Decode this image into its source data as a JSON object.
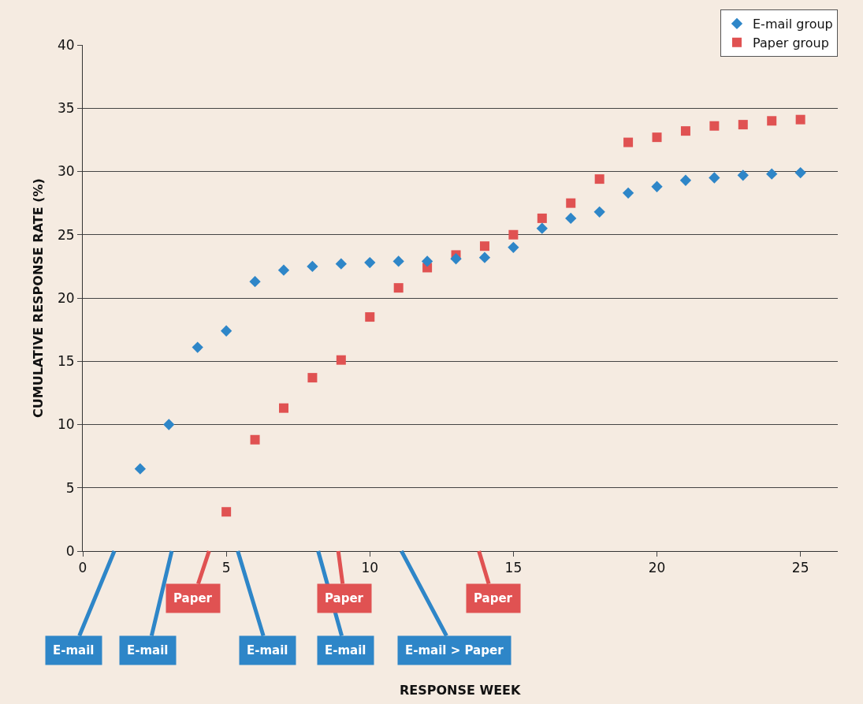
{
  "chart_data": {
    "type": "scatter",
    "ylabel": "CUMULATIVE RESPONSE RATE (%)",
    "xlim": [
      0,
      26.3
    ],
    "xticks": [
      0,
      5,
      10,
      15,
      20,
      25
    ],
    "ylim": [
      0,
      40
    ],
    "yticks": [
      0,
      5,
      10,
      15,
      20,
      25,
      30,
      35,
      40
    ],
    "grid": "y",
    "legend": "top right",
    "series": [
      {
        "name": "E-mail group",
        "color": "#2e86c8",
        "marker": "diamond",
        "x": [
          2,
          3,
          4,
          5,
          6,
          7,
          8,
          9,
          10,
          11,
          12,
          13,
          14,
          15,
          16,
          17,
          18,
          19,
          20,
          21,
          22,
          23,
          24,
          25
        ],
        "values": [
          6.5,
          10.0,
          16.1,
          17.4,
          21.3,
          22.2,
          22.5,
          22.7,
          22.8,
          22.9,
          22.9,
          23.1,
          23.2,
          24.0,
          25.5,
          26.3,
          26.8,
          28.3,
          28.8,
          29.3,
          29.5,
          29.7,
          29.8,
          29.9
        ]
      },
      {
        "name": "Paper group",
        "color": "#e05252",
        "marker": "square",
        "x": [
          5,
          6,
          7,
          8,
          9,
          10,
          11,
          12,
          13,
          14,
          15,
          16,
          17,
          18,
          19,
          20,
          21,
          22,
          23,
          24,
          25
        ],
        "values": [
          3.1,
          8.8,
          11.3,
          13.7,
          15.1,
          18.5,
          20.8,
          22.4,
          23.4,
          24.1,
          25.0,
          26.3,
          27.5,
          29.4,
          32.3,
          32.7,
          33.2,
          33.6,
          33.7,
          34.0,
          34.1
        ]
      }
    ],
    "annotations": [
      "E-mail",
      "E-mail",
      "Paper",
      "E-mail",
      "E-mail",
      "Paper",
      "E-mail > Paper",
      "Paper",
      "RESPONSE WEEK"
    ]
  }
}
